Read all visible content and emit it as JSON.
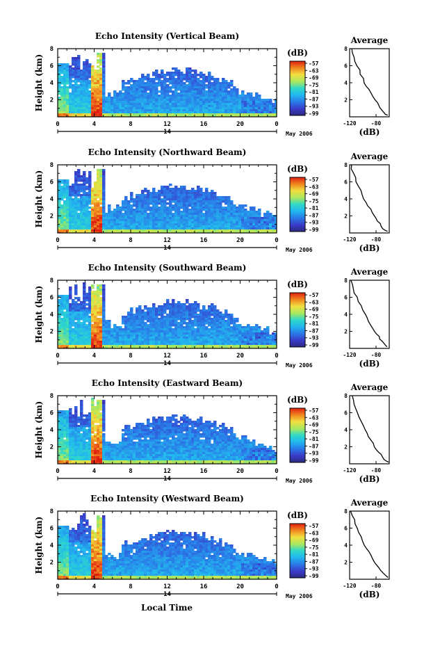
{
  "figure": {
    "xlabel": "Local Time",
    "date_label": "May 2006",
    "day_label": "14",
    "unit_label": "(dB)",
    "avg_title": "Average",
    "avg_xlabel": "(dB)"
  },
  "chart_data": [
    {
      "type": "heatmap",
      "title": "Echo Intensity (Vertical Beam)",
      "ylabel": "Height (km)",
      "xlabel": "",
      "x_ticks": [
        "0",
        "4",
        "8",
        "12",
        "16",
        "20",
        "0"
      ],
      "y_ticks": [
        "2",
        "4",
        "6",
        "8"
      ],
      "xlim": [
        0,
        24
      ],
      "ylim": [
        0,
        8
      ],
      "colorbar": {
        "unit": "(dB)",
        "ticks": [
          "-57",
          "-63",
          "-69",
          "-75",
          "-81",
          "-87",
          "-93",
          "-99"
        ],
        "range": [
          -99,
          -57
        ]
      },
      "avg_profile": {
        "title": "Average",
        "xlabel": "(dB)",
        "x_ticks": [
          "-120",
          "-80"
        ],
        "y_ticks": [
          "2",
          "4",
          "6",
          "8"
        ],
        "xlim": [
          -120,
          -60
        ],
        "ylim": [
          0,
          8
        ],
        "x": [
          -117,
          -116,
          -113,
          -111,
          -108,
          -105,
          -103,
          -100,
          -97,
          -94,
          -91,
          -88,
          -85,
          -82,
          -79,
          -77,
          -74,
          -71,
          -68,
          -65,
          -62
        ],
        "y": [
          8.0,
          7.5,
          7.0,
          6.5,
          6.0,
          5.5,
          5.0,
          4.5,
          4.0,
          3.6,
          3.2,
          2.8,
          2.4,
          2.0,
          1.7,
          1.4,
          1.1,
          0.8,
          0.5,
          0.3,
          0.2
        ]
      }
    },
    {
      "type": "heatmap",
      "title": "Echo Intensity (Northward Beam)",
      "ylabel": "Height (km)",
      "xlabel": "",
      "x_ticks": [
        "0",
        "4",
        "8",
        "12",
        "16",
        "20",
        "0"
      ],
      "y_ticks": [
        "2",
        "4",
        "6",
        "8"
      ],
      "xlim": [
        0,
        24
      ],
      "ylim": [
        0,
        8
      ],
      "colorbar": {
        "unit": "(dB)",
        "ticks": [
          "-57",
          "-63",
          "-69",
          "-75",
          "-81",
          "-87",
          "-93",
          "-99"
        ],
        "range": [
          -99,
          -57
        ]
      },
      "avg_profile": {
        "title": "Average",
        "xlabel": "(dB)",
        "x_ticks": [
          "-120",
          "-80"
        ],
        "y_ticks": [
          "2",
          "4",
          "6",
          "8"
        ],
        "xlim": [
          -120,
          -60
        ],
        "ylim": [
          0,
          8
        ],
        "x": [
          -118,
          -117,
          -115,
          -112,
          -110,
          -107,
          -104,
          -101,
          -98,
          -95,
          -92,
          -89,
          -86,
          -83,
          -80,
          -77,
          -74,
          -72,
          -69,
          -66,
          -63
        ],
        "y": [
          8.0,
          7.5,
          7.0,
          6.5,
          6.0,
          5.5,
          5.0,
          4.5,
          4.0,
          3.6,
          3.2,
          2.8,
          2.4,
          2.0,
          1.7,
          1.4,
          1.1,
          0.8,
          0.5,
          0.3,
          0.2
        ]
      }
    },
    {
      "type": "heatmap",
      "title": "Echo Intensity (Southward Beam)",
      "ylabel": "Height (km)",
      "xlabel": "",
      "x_ticks": [
        "0",
        "4",
        "8",
        "12",
        "16",
        "20",
        "0"
      ],
      "y_ticks": [
        "2",
        "4",
        "6",
        "8"
      ],
      "xlim": [
        0,
        24
      ],
      "ylim": [
        0,
        8
      ],
      "colorbar": {
        "unit": "(dB)",
        "ticks": [
          "-57",
          "-63",
          "-69",
          "-75",
          "-81",
          "-87",
          "-93",
          "-99"
        ],
        "range": [
          -99,
          -57
        ]
      },
      "avg_profile": {
        "title": "Average",
        "xlabel": "(dB)",
        "x_ticks": [
          "-120",
          "-80"
        ],
        "y_ticks": [
          "2",
          "4",
          "6",
          "8"
        ],
        "xlim": [
          -120,
          -60
        ],
        "ylim": [
          0,
          8
        ],
        "x": [
          -117,
          -116,
          -114,
          -112,
          -109,
          -106,
          -103,
          -100,
          -97,
          -94,
          -91,
          -88,
          -85,
          -82,
          -79,
          -76,
          -74,
          -71,
          -68,
          -65,
          -62
        ],
        "y": [
          8.0,
          7.5,
          7.0,
          6.5,
          6.0,
          5.5,
          5.0,
          4.5,
          4.0,
          3.6,
          3.2,
          2.8,
          2.4,
          2.0,
          1.7,
          1.4,
          1.1,
          0.8,
          0.5,
          0.3,
          0.2
        ]
      }
    },
    {
      "type": "heatmap",
      "title": "Echo Intensity (Eastward Beam)",
      "ylabel": "Height (km)",
      "xlabel": "",
      "x_ticks": [
        "0",
        "4",
        "8",
        "12",
        "16",
        "20",
        "0"
      ],
      "y_ticks": [
        "2",
        "4",
        "6",
        "8"
      ],
      "xlim": [
        0,
        24
      ],
      "ylim": [
        0,
        8
      ],
      "colorbar": {
        "unit": "(dB)",
        "ticks": [
          "-57",
          "-63",
          "-69",
          "-75",
          "-81",
          "-87",
          "-93",
          "-99"
        ],
        "range": [
          -99,
          -57
        ]
      },
      "avg_profile": {
        "title": "Average",
        "xlabel": "(dB)",
        "x_ticks": [
          "-120",
          "-80"
        ],
        "y_ticks": [
          "2",
          "4",
          "6",
          "8"
        ],
        "xlim": [
          -120,
          -60
        ],
        "ylim": [
          0,
          8
        ],
        "x": [
          -117,
          -115,
          -113,
          -110,
          -108,
          -105,
          -102,
          -99,
          -96,
          -94,
          -91,
          -88,
          -85,
          -82,
          -79,
          -76,
          -73,
          -70,
          -67,
          -64,
          -62
        ],
        "y": [
          8.0,
          7.5,
          7.0,
          6.5,
          6.0,
          5.5,
          5.0,
          4.5,
          4.0,
          3.6,
          3.2,
          2.8,
          2.4,
          2.0,
          1.7,
          1.4,
          1.1,
          0.8,
          0.5,
          0.3,
          0.2
        ]
      }
    },
    {
      "type": "heatmap",
      "title": "Echo Intensity (Westward Beam)",
      "ylabel": "Height (km)",
      "xlabel": "Local Time",
      "x_ticks": [
        "0",
        "4",
        "8",
        "12",
        "16",
        "20",
        "0"
      ],
      "y_ticks": [
        "2",
        "4",
        "6",
        "8"
      ],
      "xlim": [
        0,
        24
      ],
      "ylim": [
        0,
        8
      ],
      "colorbar": {
        "unit": "(dB)",
        "ticks": [
          "-57",
          "-63",
          "-69",
          "-75",
          "-81",
          "-87",
          "-93",
          "-99"
        ],
        "range": [
          -99,
          -57
        ]
      },
      "avg_profile": {
        "title": "Average",
        "xlabel": "(dB)",
        "x_ticks": [
          "-120",
          "-80"
        ],
        "y_ticks": [
          "2",
          "4",
          "6",
          "8"
        ],
        "xlim": [
          -120,
          -60
        ],
        "ylim": [
          0,
          8
        ],
        "x": [
          -118,
          -116,
          -113,
          -111,
          -108,
          -106,
          -103,
          -100,
          -97,
          -94,
          -91,
          -88,
          -85,
          -82,
          -79,
          -76,
          -73,
          -70,
          -67,
          -64,
          -62
        ],
        "y": [
          8.0,
          7.5,
          7.0,
          6.5,
          6.0,
          5.5,
          5.0,
          4.5,
          4.0,
          3.6,
          3.2,
          2.8,
          2.4,
          2.0,
          1.7,
          1.4,
          1.1,
          0.8,
          0.5,
          0.3,
          0.2
        ]
      }
    }
  ]
}
